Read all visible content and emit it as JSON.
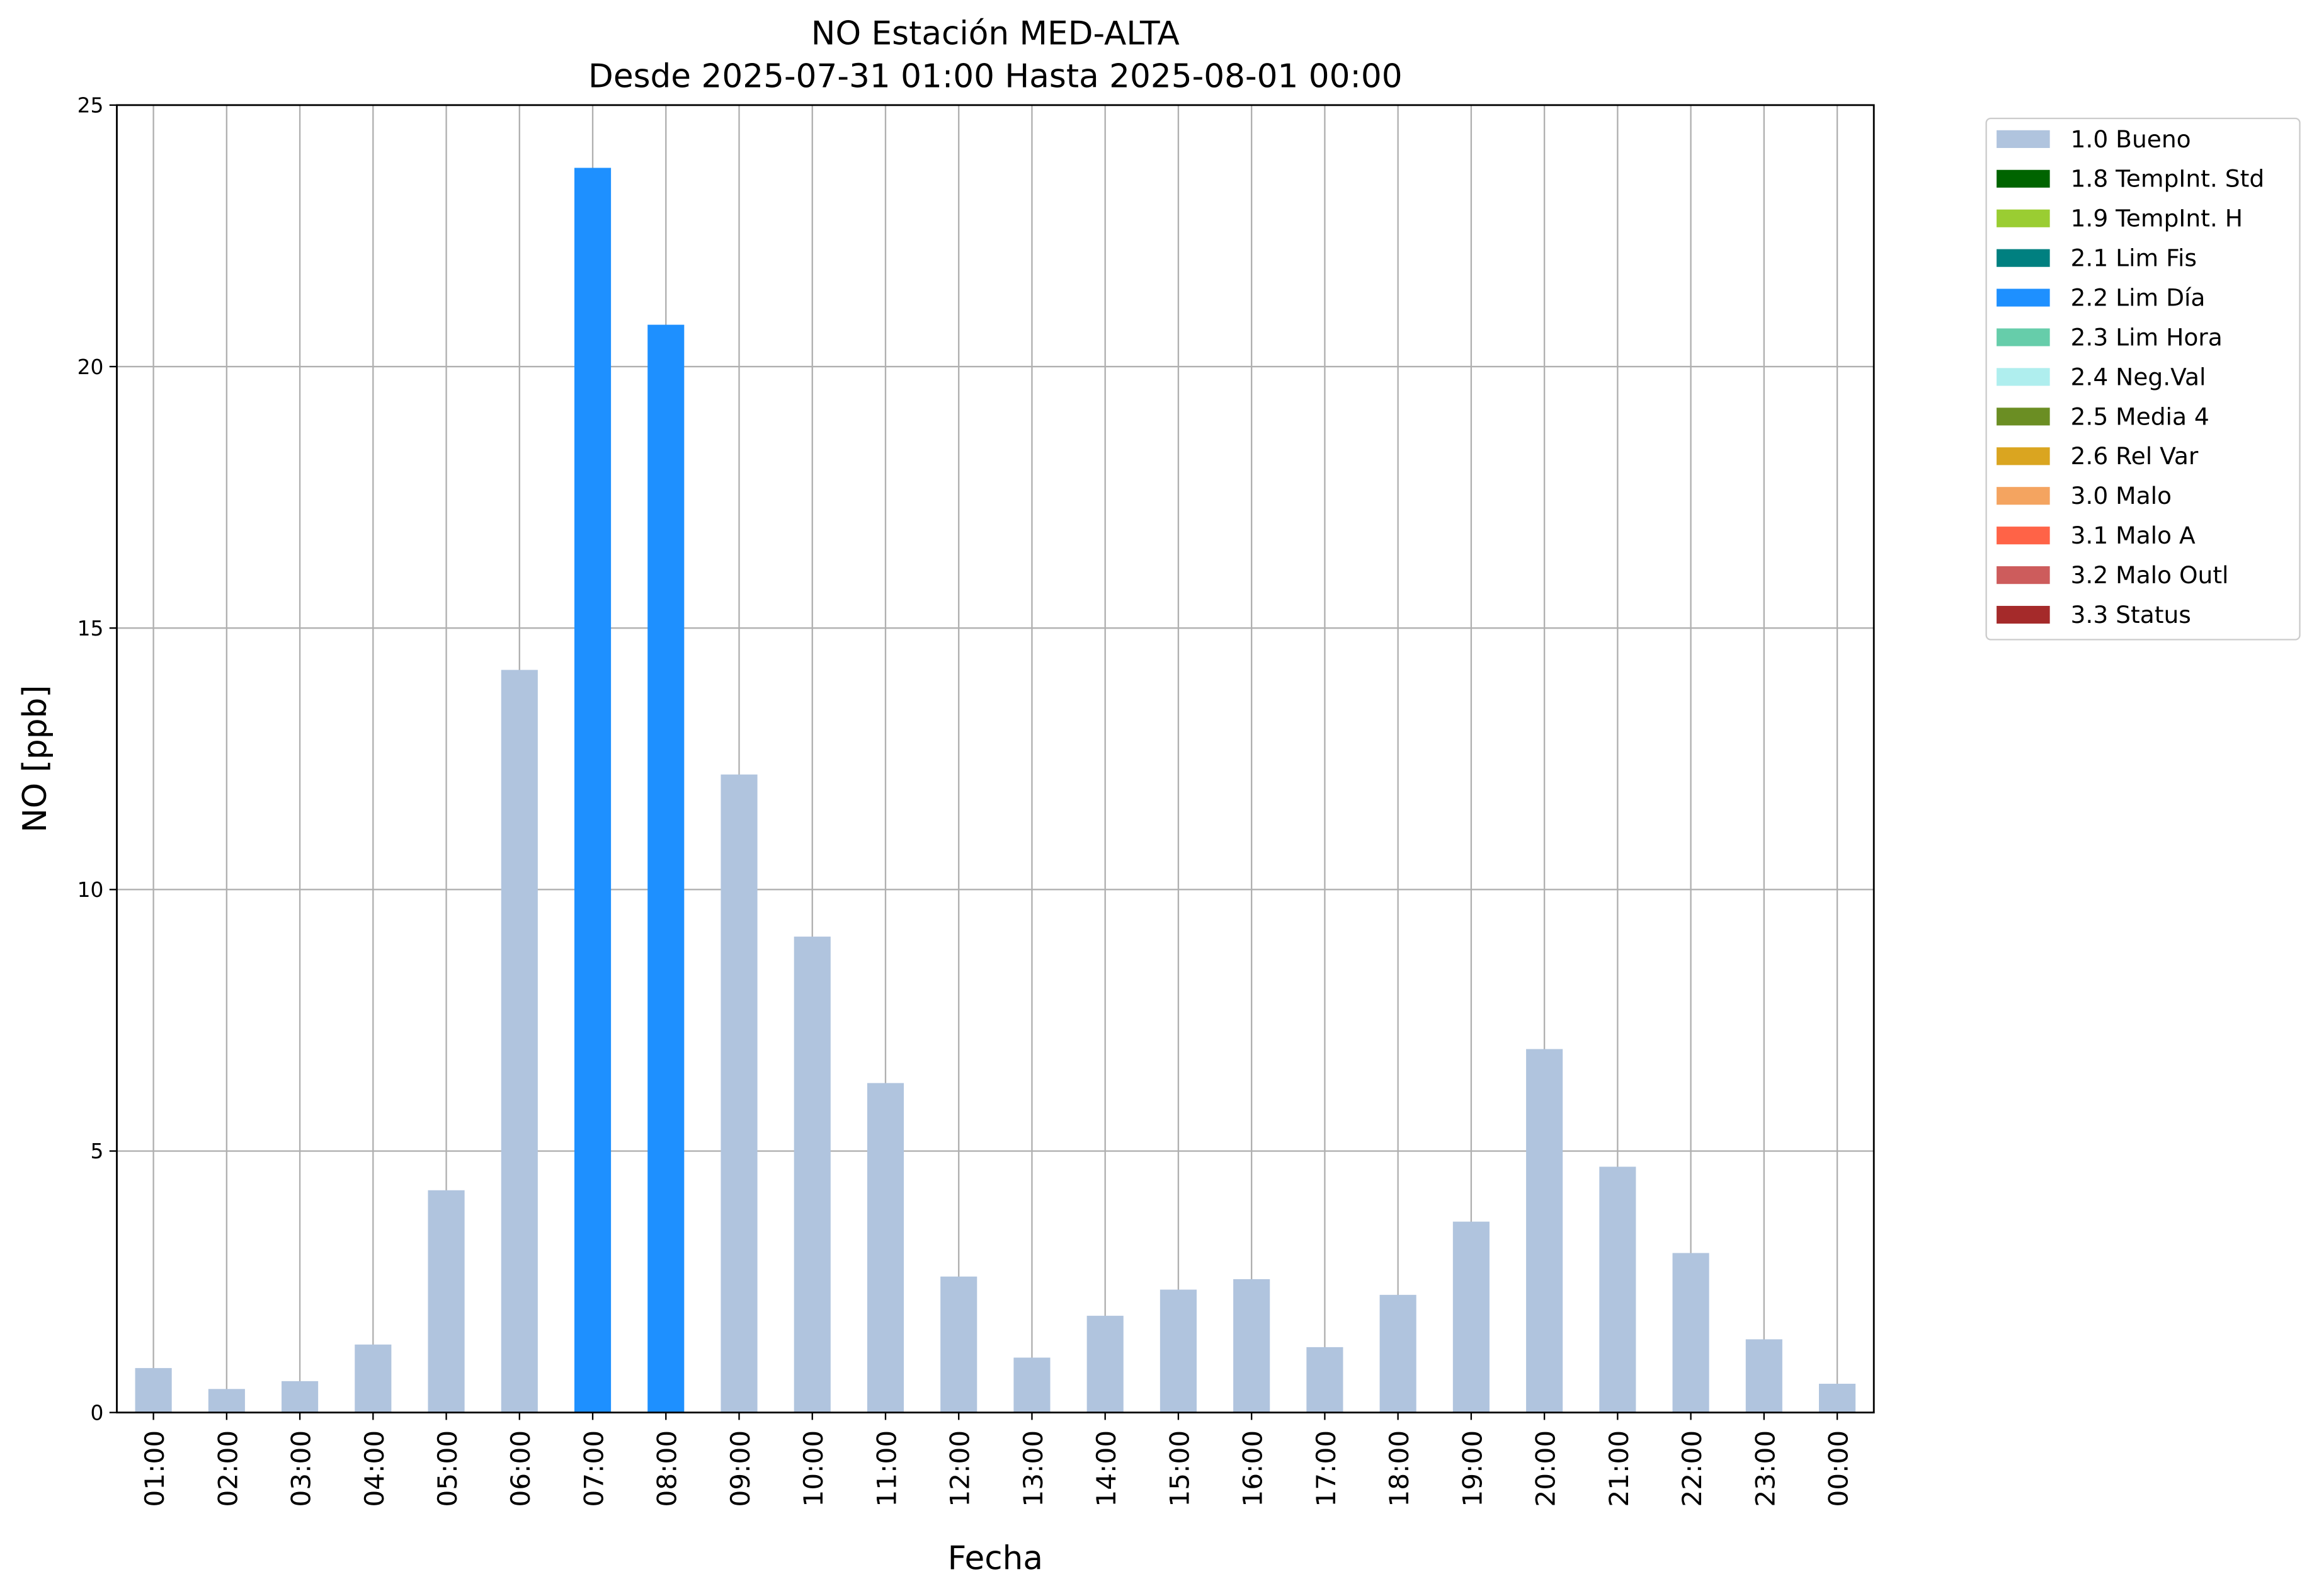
{
  "chart_data": {
    "type": "bar",
    "stacked": true,
    "title": "NO Estación MED-ALTA",
    "subtitle": "Desde 2025-07-31 01:00 Hasta 2025-08-01 00:00",
    "x_label": "Fecha",
    "y_label": "NO [ppb]",
    "categories": [
      "01:00",
      "02:00",
      "03:00",
      "04:00",
      "05:00",
      "06:00",
      "07:00",
      "08:00",
      "09:00",
      "10:00",
      "11:00",
      "12:00",
      "13:00",
      "14:00",
      "15:00",
      "16:00",
      "17:00",
      "18:00",
      "19:00",
      "20:00",
      "21:00",
      "22:00",
      "23:00",
      "00:00"
    ],
    "ylim": [
      0,
      25
    ],
    "yticks": [
      0,
      5,
      10,
      15,
      20,
      25
    ],
    "grid": true,
    "legend": "outside right",
    "series": [
      {
        "name": "1.0 Bueno",
        "color": "#b0c4de",
        "values": [
          0.85,
          0.45,
          0.6,
          1.3,
          4.25,
          14.2,
          null,
          null,
          12.2,
          9.1,
          6.3,
          2.6,
          1.05,
          1.85,
          2.35,
          2.55,
          1.25,
          2.25,
          3.65,
          6.95,
          4.7,
          3.05,
          1.4,
          0.55
        ]
      },
      {
        "name": "1.8 TempInt. Std",
        "color": "#006400",
        "values": [
          null,
          null,
          null,
          null,
          null,
          null,
          null,
          null,
          null,
          null,
          null,
          null,
          null,
          null,
          null,
          null,
          null,
          null,
          null,
          null,
          null,
          null,
          null,
          null
        ]
      },
      {
        "name": "1.9 TempInt. H",
        "color": "#9acd32",
        "values": [
          null,
          null,
          null,
          null,
          null,
          null,
          null,
          null,
          null,
          null,
          null,
          null,
          null,
          null,
          null,
          null,
          null,
          null,
          null,
          null,
          null,
          null,
          null,
          null
        ]
      },
      {
        "name": "2.1 Lim Fis",
        "color": "#008080",
        "values": [
          null,
          null,
          null,
          null,
          null,
          null,
          null,
          null,
          null,
          null,
          null,
          null,
          null,
          null,
          null,
          null,
          null,
          null,
          null,
          null,
          null,
          null,
          null,
          null
        ]
      },
      {
        "name": "2.2 Lim Día",
        "color": "#1e90ff",
        "values": [
          null,
          null,
          null,
          null,
          null,
          null,
          23.8,
          20.8,
          null,
          null,
          null,
          null,
          null,
          null,
          null,
          null,
          null,
          null,
          null,
          null,
          null,
          null,
          null,
          null
        ]
      },
      {
        "name": "2.3 Lim Hora",
        "color": "#66cdaa",
        "values": [
          null,
          null,
          null,
          null,
          null,
          null,
          null,
          null,
          null,
          null,
          null,
          null,
          null,
          null,
          null,
          null,
          null,
          null,
          null,
          null,
          null,
          null,
          null,
          null
        ]
      },
      {
        "name": "2.4 Neg.Val",
        "color": "#afeeee",
        "values": [
          null,
          null,
          null,
          null,
          null,
          null,
          null,
          null,
          null,
          null,
          null,
          null,
          null,
          null,
          null,
          null,
          null,
          null,
          null,
          null,
          null,
          null,
          null,
          null
        ]
      },
      {
        "name": "2.5 Media 4",
        "color": "#6b8e23",
        "values": [
          null,
          null,
          null,
          null,
          null,
          null,
          null,
          null,
          null,
          null,
          null,
          null,
          null,
          null,
          null,
          null,
          null,
          null,
          null,
          null,
          null,
          null,
          null,
          null
        ]
      },
      {
        "name": "2.6 Rel Var",
        "color": "#daa520",
        "values": [
          null,
          null,
          null,
          null,
          null,
          null,
          null,
          null,
          null,
          null,
          null,
          null,
          null,
          null,
          null,
          null,
          null,
          null,
          null,
          null,
          null,
          null,
          null,
          null
        ]
      },
      {
        "name": "3.0 Malo",
        "color": "#f4a460",
        "values": [
          null,
          null,
          null,
          null,
          null,
          null,
          null,
          null,
          null,
          null,
          null,
          null,
          null,
          null,
          null,
          null,
          null,
          null,
          null,
          null,
          null,
          null,
          null,
          null
        ]
      },
      {
        "name": "3.1 Malo A",
        "color": "#ff6347",
        "values": [
          null,
          null,
          null,
          null,
          null,
          null,
          null,
          null,
          null,
          null,
          null,
          null,
          null,
          null,
          null,
          null,
          null,
          null,
          null,
          null,
          null,
          null,
          null,
          null
        ]
      },
      {
        "name": "3.2 Malo Outl",
        "color": "#cd5c5c",
        "values": [
          null,
          null,
          null,
          null,
          null,
          null,
          null,
          null,
          null,
          null,
          null,
          null,
          null,
          null,
          null,
          null,
          null,
          null,
          null,
          null,
          null,
          null,
          null,
          null
        ]
      },
      {
        "name": "3.3 Status",
        "color": "#a52a2a",
        "values": [
          null,
          null,
          null,
          null,
          null,
          null,
          null,
          null,
          null,
          null,
          null,
          null,
          null,
          null,
          null,
          null,
          null,
          null,
          null,
          null,
          null,
          null,
          null,
          null
        ]
      }
    ]
  }
}
